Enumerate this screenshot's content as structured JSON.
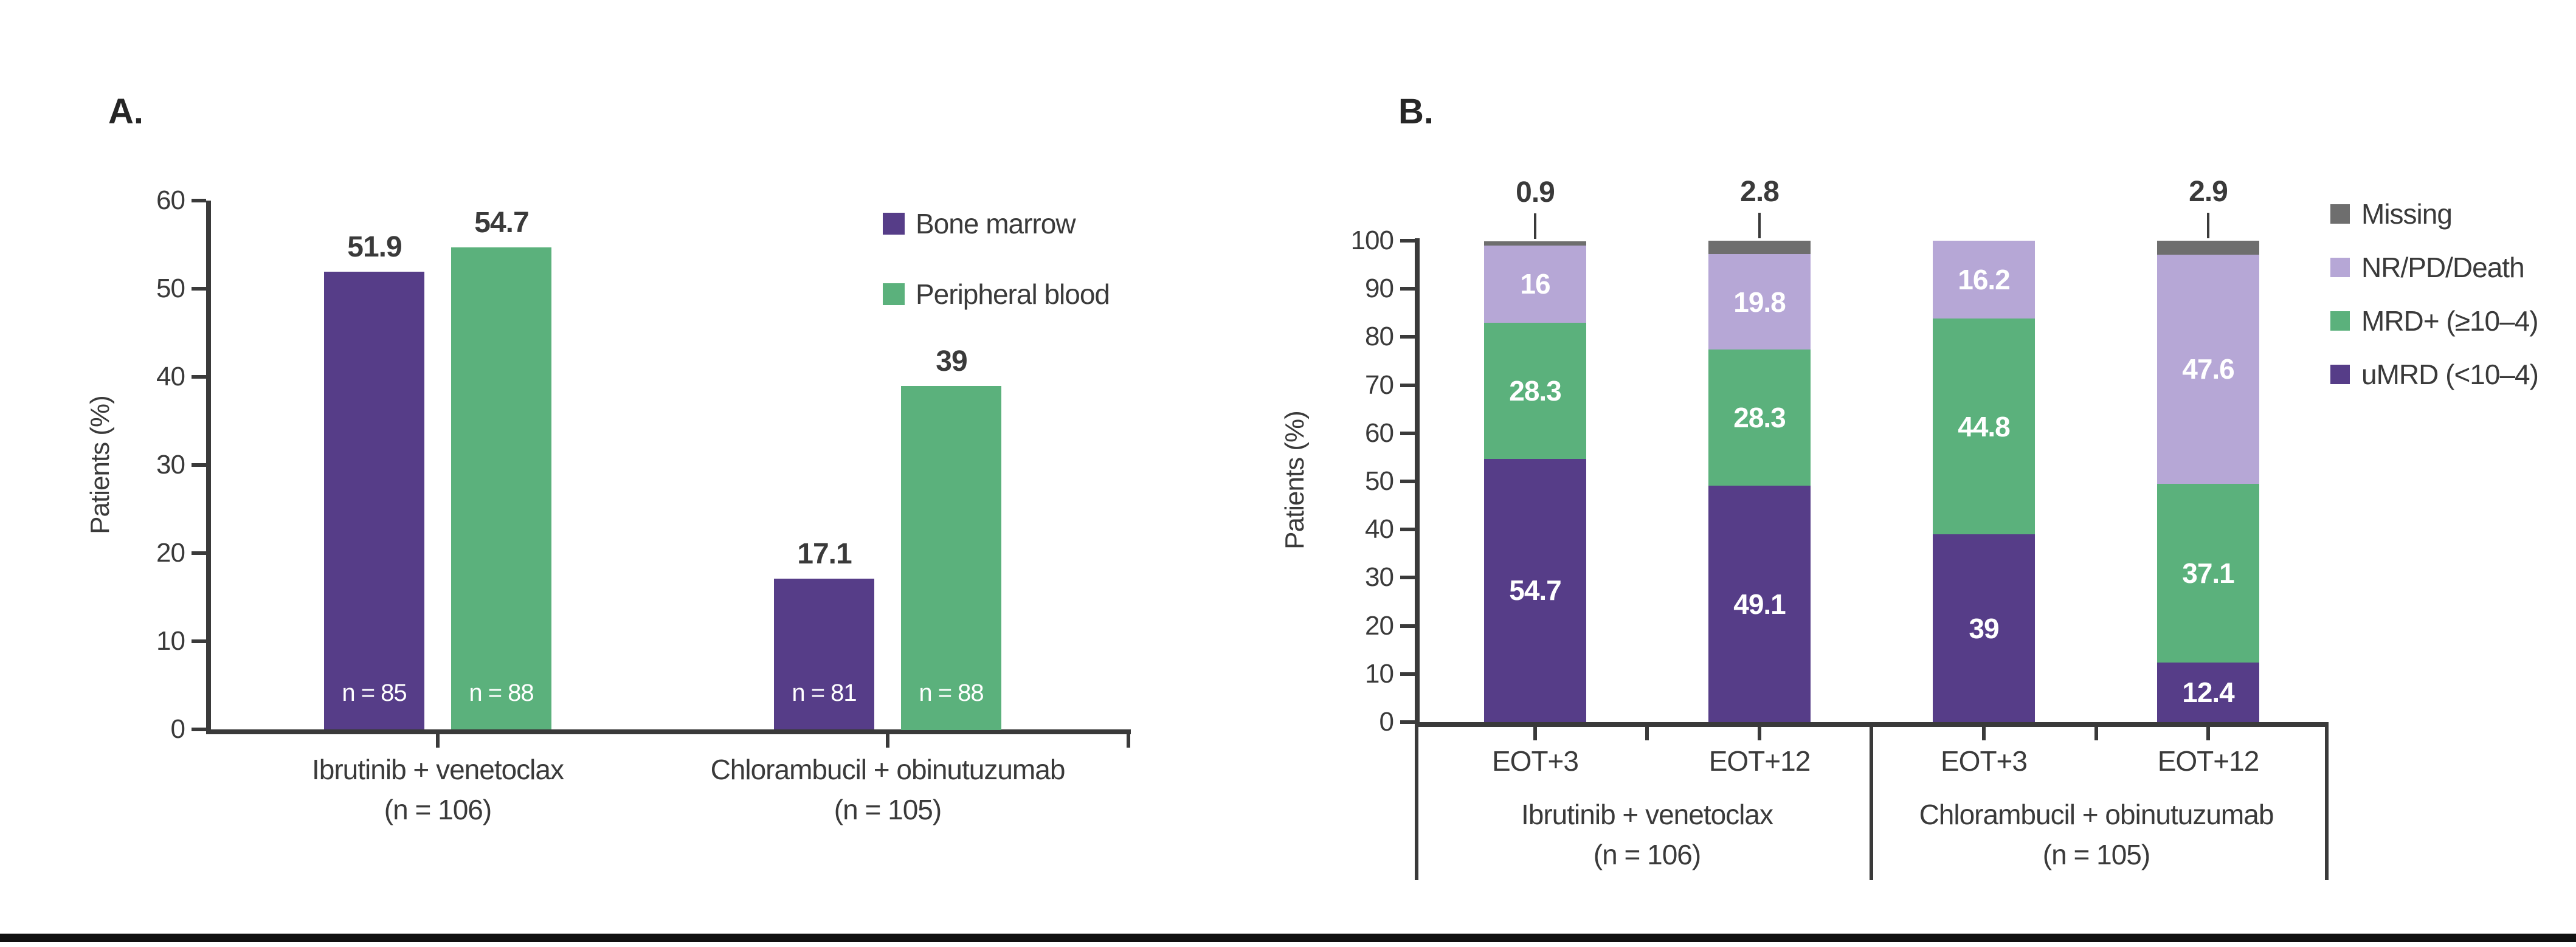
{
  "figure": {
    "panel_a_label": "A.",
    "panel_b_label": "B.",
    "y_axis_label": "Patients (%)"
  },
  "colors": {
    "bone_marrow_purple": "#563d88",
    "peripheral_blood_green": "#5bb17c",
    "nr_pd_death_lilac": "#b6a7d6",
    "missing_gray": "#6e6e6e",
    "axis_dark": "#3a3a3a",
    "bottom_rule_black": "#111111"
  },
  "chart_data": [
    {
      "type": "bar",
      "panel": "A",
      "ylabel": "Patients (%)",
      "ylim": [
        0,
        60
      ],
      "yticks": [
        "0",
        "10",
        "20",
        "30",
        "40",
        "50",
        "60"
      ],
      "grid": false,
      "legend_position": "top-right",
      "categories": [
        {
          "label": "Ibrutinib + venetoclax",
          "sublabel": "(n = 106)"
        },
        {
          "label": "Chlorambucil + obinutuzumab",
          "sublabel": "(n = 105)"
        }
      ],
      "series": [
        {
          "name": "Bone marrow",
          "color": "#563d88",
          "values": [
            51.9,
            17.1
          ],
          "value_labels": [
            "51.9",
            "17.1"
          ],
          "bar_annotations": [
            "n = 85",
            "n = 81"
          ]
        },
        {
          "name": "Peripheral blood",
          "color": "#5bb17c",
          "values": [
            54.7,
            39
          ],
          "value_labels": [
            "54.7",
            "39"
          ],
          "bar_annotations": [
            "n = 88",
            "n = 88"
          ]
        }
      ]
    },
    {
      "type": "stacked-bar",
      "panel": "B",
      "ylabel": "Patients (%)",
      "ylim": [
        0,
        100
      ],
      "yticks": [
        "0",
        "10",
        "20",
        "30",
        "40",
        "50",
        "60",
        "70",
        "80",
        "90",
        "100"
      ],
      "grid": false,
      "legend_position": "top-right",
      "legend": [
        {
          "name": "Missing",
          "color": "#6e6e6e"
        },
        {
          "name": "NR/PD/Death",
          "color": "#b6a7d6"
        },
        {
          "name": "MRD+ (≥10–4)",
          "color": "#5bb17c"
        },
        {
          "name": "uMRD (<10–4)",
          "color": "#563d88"
        }
      ],
      "stack_order_bottom_to_top": [
        "uMRD (<10–4)",
        "MRD+ (≥10–4)",
        "NR/PD/Death",
        "Missing"
      ],
      "groups": [
        {
          "label": "Ibrutinib + venetoclax",
          "sublabel": "(n = 106)",
          "timepoints": [
            "EOT+3",
            "EOT+12"
          ]
        },
        {
          "label": "Chlorambucil + obinutuzumab",
          "sublabel": "(n = 105)",
          "timepoints": [
            "EOT+3",
            "EOT+12"
          ]
        }
      ],
      "bars": [
        {
          "group_index": 0,
          "timepoint": "EOT+3",
          "segments": [
            {
              "name": "uMRD (<10–4)",
              "value": 54.7,
              "label": "54.7"
            },
            {
              "name": "MRD+ (≥10–4)",
              "value": 28.3,
              "label": "28.3"
            },
            {
              "name": "NR/PD/Death",
              "value": 16,
              "label": "16"
            },
            {
              "name": "Missing",
              "value": 0.9,
              "label": "0.9",
              "callout": true
            }
          ]
        },
        {
          "group_index": 0,
          "timepoint": "EOT+12",
          "segments": [
            {
              "name": "uMRD (<10–4)",
              "value": 49.1,
              "label": "49.1"
            },
            {
              "name": "MRD+ (≥10–4)",
              "value": 28.3,
              "label": "28.3"
            },
            {
              "name": "NR/PD/Death",
              "value": 19.8,
              "label": "19.8"
            },
            {
              "name": "Missing",
              "value": 2.8,
              "label": "2.8",
              "callout": true
            }
          ]
        },
        {
          "group_index": 1,
          "timepoint": "EOT+3",
          "segments": [
            {
              "name": "uMRD (<10–4)",
              "value": 39,
              "label": "39"
            },
            {
              "name": "MRD+ (≥10–4)",
              "value": 44.8,
              "label": "44.8"
            },
            {
              "name": "NR/PD/Death",
              "value": 16.2,
              "label": "16.2"
            }
          ]
        },
        {
          "group_index": 1,
          "timepoint": "EOT+12",
          "segments": [
            {
              "name": "uMRD (<10–4)",
              "value": 12.4,
              "label": "12.4"
            },
            {
              "name": "MRD+ (≥10–4)",
              "value": 37.1,
              "label": "37.1"
            },
            {
              "name": "NR/PD/Death",
              "value": 47.6,
              "label": "47.6"
            },
            {
              "name": "Missing",
              "value": 2.9,
              "label": "2.9",
              "callout": true
            }
          ]
        }
      ]
    }
  ]
}
